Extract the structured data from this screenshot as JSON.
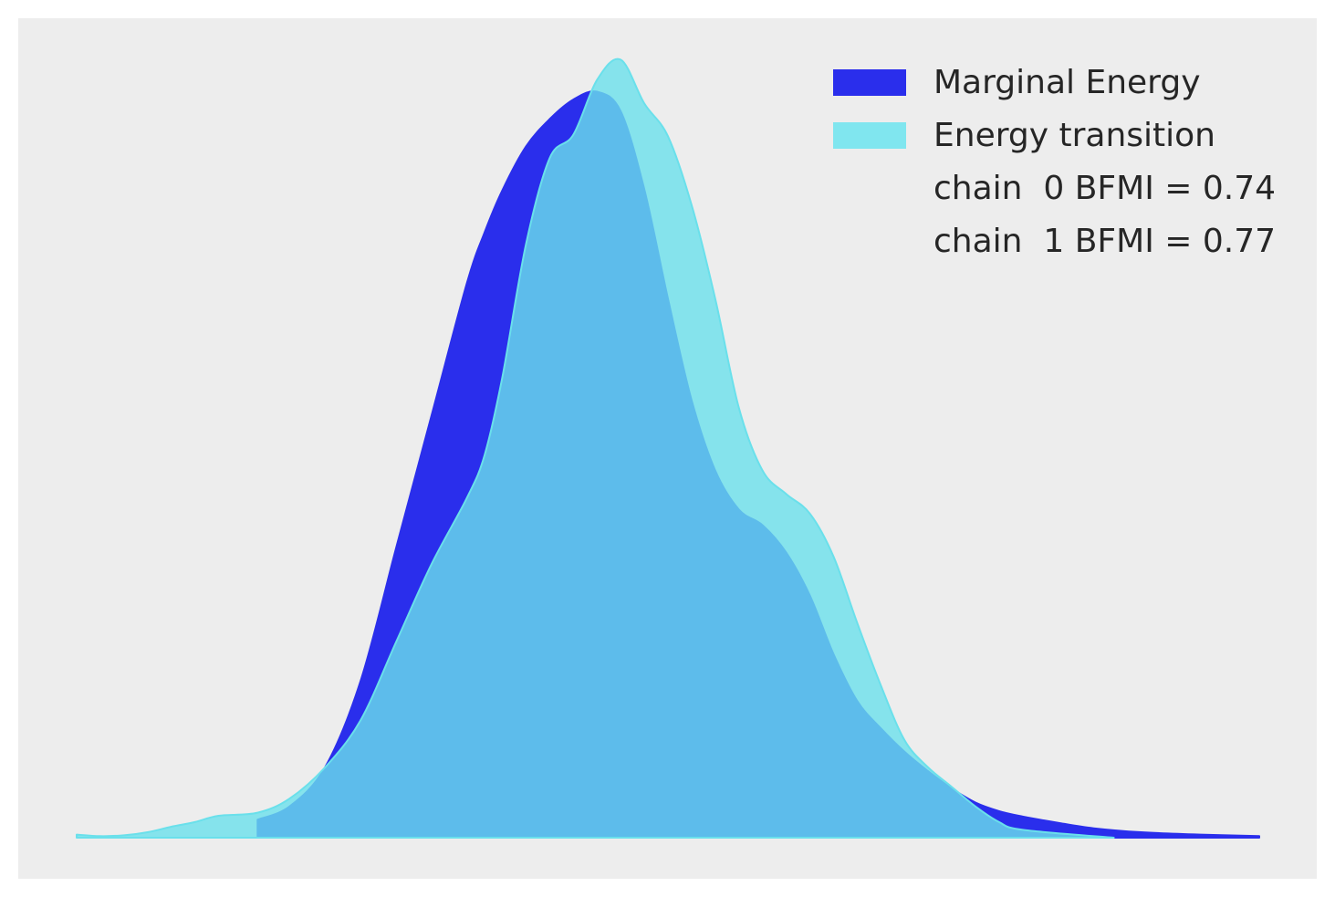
{
  "chart_data": {
    "type": "area",
    "title": "",
    "xlabel": "",
    "ylabel": "",
    "axes_visible": false,
    "grid": false,
    "legend_position": "top-right",
    "background": "#ededed",
    "xlim": [
      0,
      1
    ],
    "ylim": [
      0,
      1
    ],
    "series": [
      {
        "name": "Marginal Energy",
        "color": "#2a2eec",
        "x": [
          0.153,
          0.18,
          0.21,
          0.24,
          0.27,
          0.3,
          0.33,
          0.345,
          0.36,
          0.38,
          0.4,
          0.42,
          0.44,
          0.46,
          0.48,
          0.5,
          0.52,
          0.54,
          0.56,
          0.58,
          0.6,
          0.62,
          0.64,
          0.66,
          0.68,
          0.7,
          0.72,
          0.74,
          0.76,
          0.78,
          0.8,
          0.83,
          0.86,
          0.9,
          0.95,
          1.0
        ],
        "y": [
          0.023,
          0.04,
          0.09,
          0.2,
          0.37,
          0.54,
          0.71,
          0.775,
          0.829,
          0.885,
          0.92,
          0.945,
          0.955,
          0.93,
          0.83,
          0.69,
          0.56,
          0.47,
          0.42,
          0.4,
          0.365,
          0.31,
          0.235,
          0.175,
          0.14,
          0.11,
          0.085,
          0.063,
          0.045,
          0.034,
          0.027,
          0.019,
          0.012,
          0.007,
          0.004,
          0.002
        ]
      },
      {
        "name": "Energy transition",
        "color": "#6ae0eb",
        "x": [
          0.0,
          0.02,
          0.04,
          0.06,
          0.08,
          0.1,
          0.12,
          0.153,
          0.18,
          0.21,
          0.24,
          0.27,
          0.3,
          0.33,
          0.345,
          0.36,
          0.38,
          0.4,
          0.42,
          0.44,
          0.46,
          0.48,
          0.5,
          0.52,
          0.54,
          0.56,
          0.58,
          0.6,
          0.62,
          0.64,
          0.66,
          0.68,
          0.7,
          0.72,
          0.74,
          0.76,
          0.78,
          0.8,
          0.877
        ],
        "y": [
          0.004,
          0.002,
          0.003,
          0.007,
          0.014,
          0.02,
          0.028,
          0.032,
          0.05,
          0.09,
          0.15,
          0.25,
          0.35,
          0.435,
          0.49,
          0.59,
          0.76,
          0.87,
          0.9,
          0.97,
          0.996,
          0.94,
          0.898,
          0.81,
          0.69,
          0.55,
          0.47,
          0.44,
          0.415,
          0.36,
          0.275,
          0.195,
          0.125,
          0.09,
          0.065,
          0.04,
          0.02,
          0.01,
          0.0
        ]
      }
    ],
    "annotations": [
      "chain  0 BFMI = 0.74",
      "chain  1 BFMI = 0.77"
    ]
  }
}
